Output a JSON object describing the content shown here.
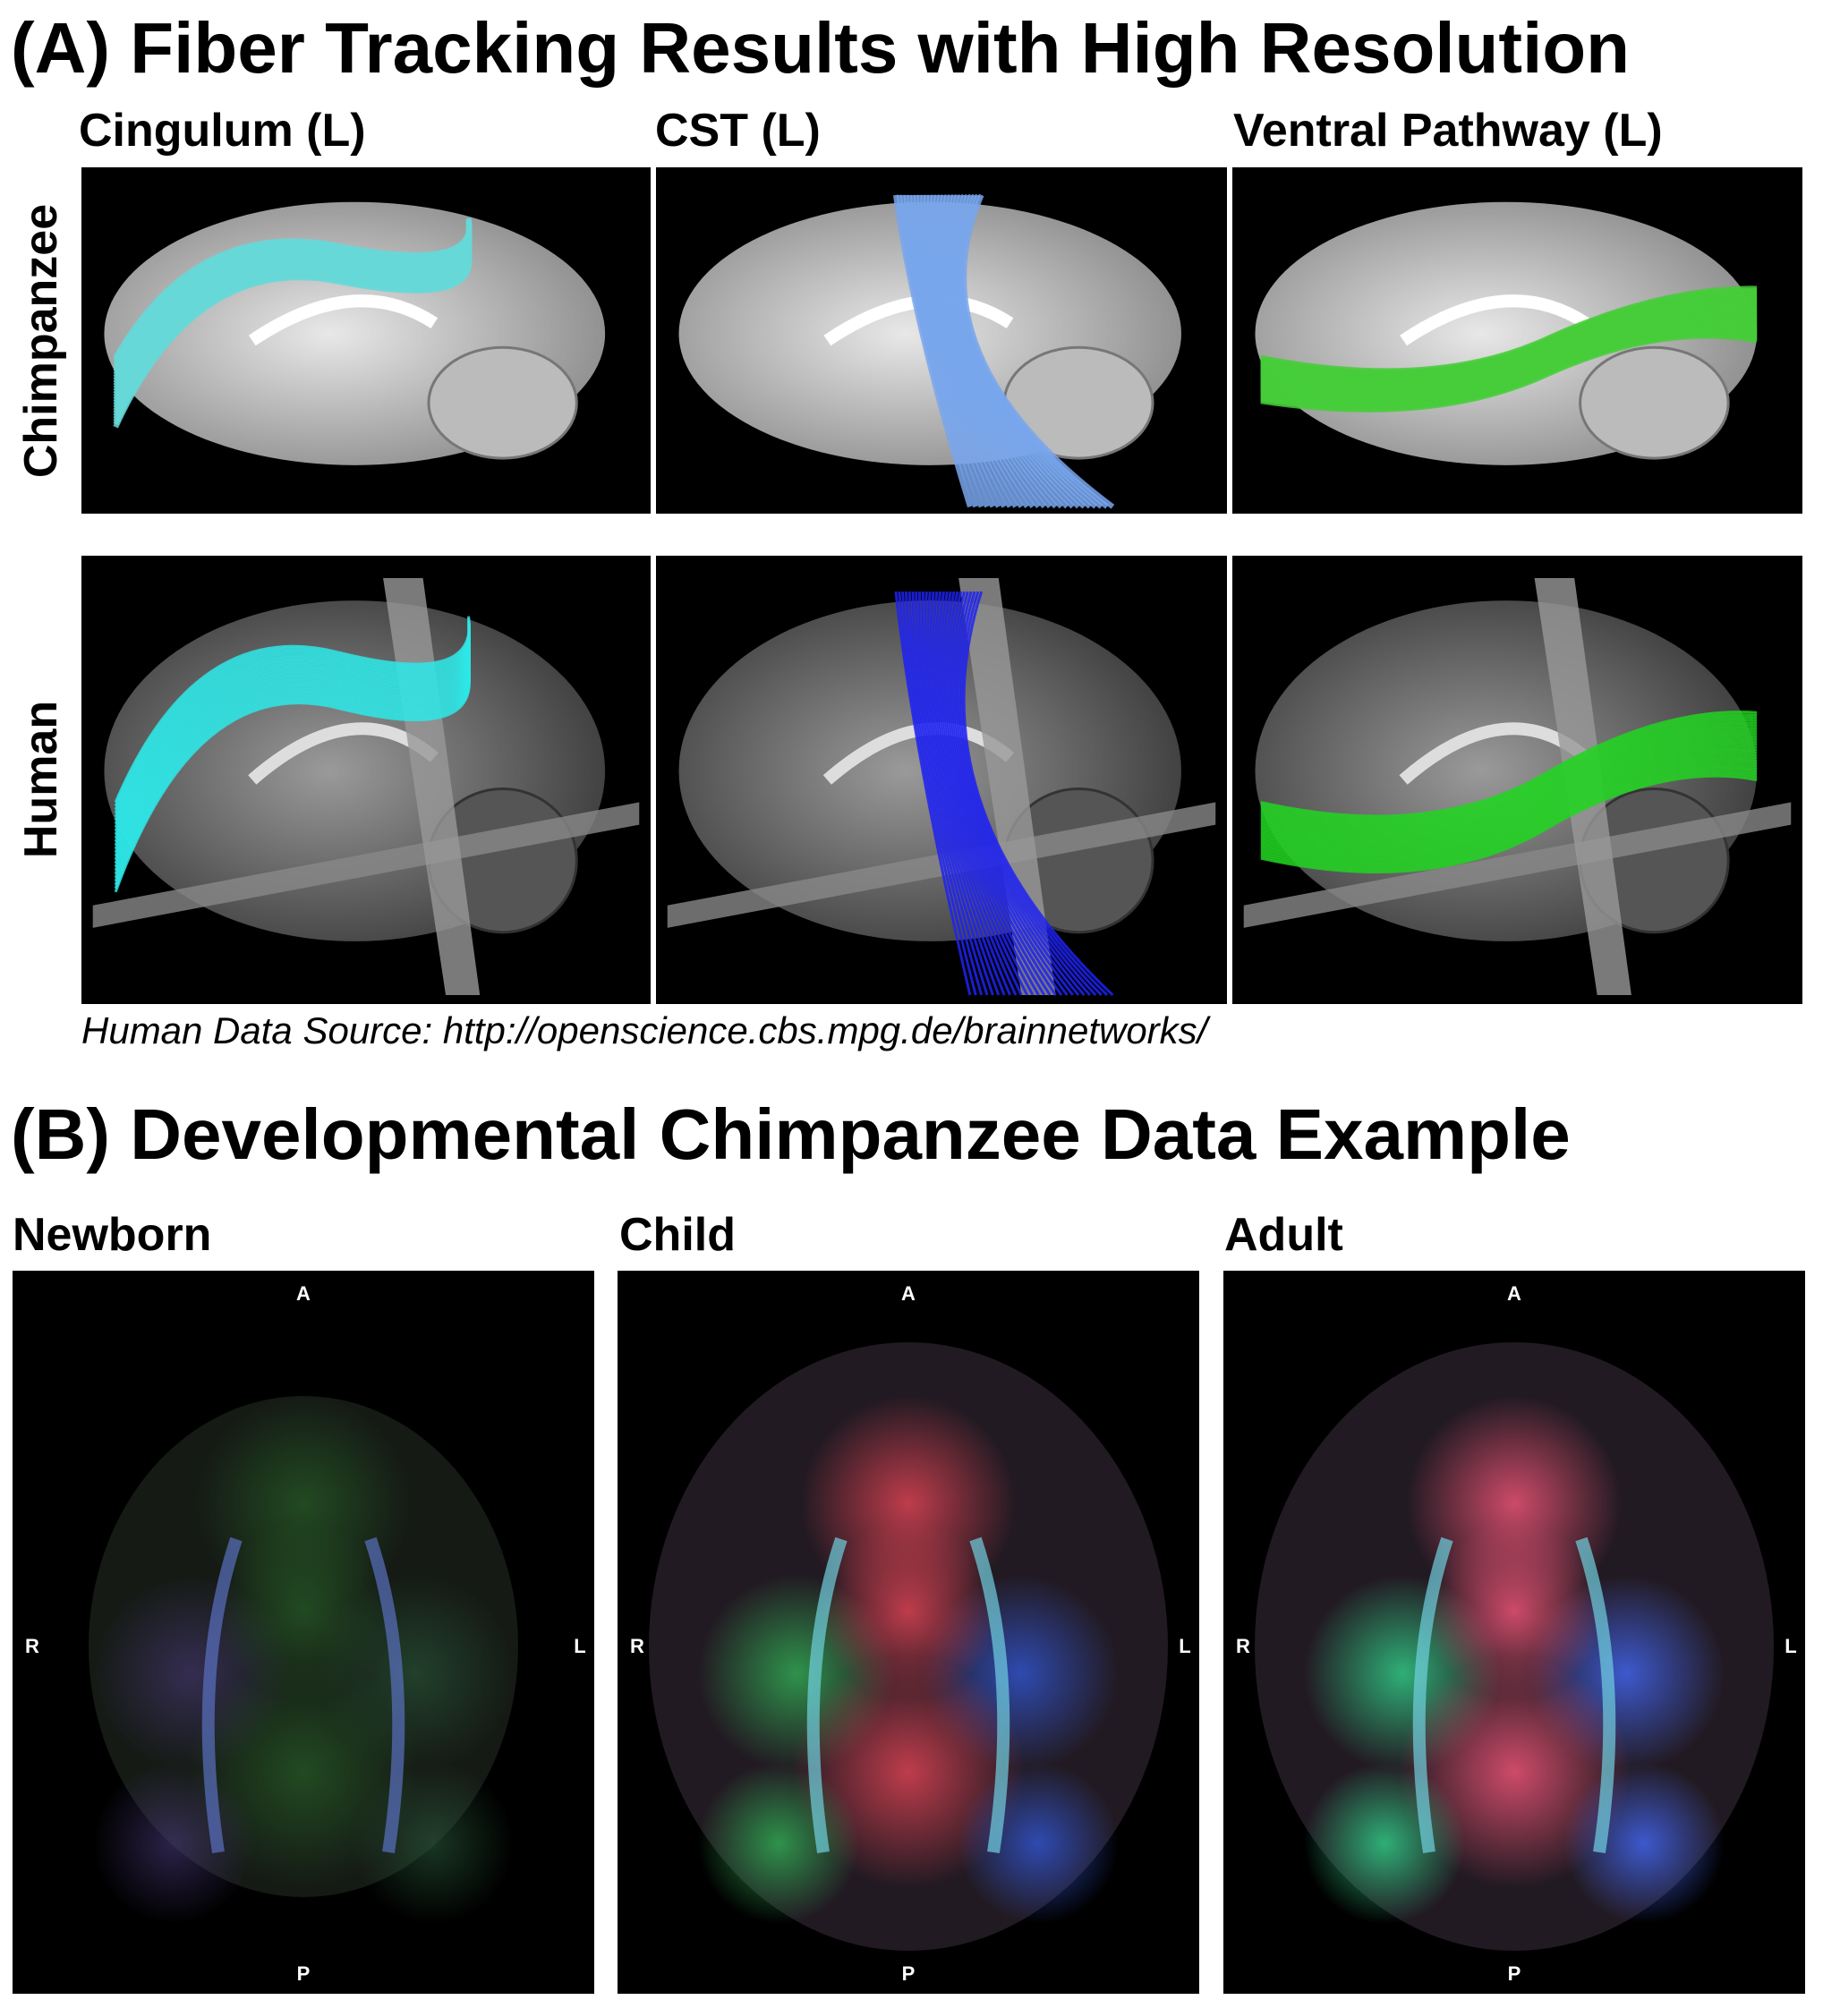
{
  "section_a": {
    "title": "(A) Fiber Tracking Results with High Resolution",
    "columns": [
      "Cingulum (L)",
      "CST (L)",
      "Ventral Pathway (L)"
    ],
    "rows": [
      "Chimpanzee",
      "Human"
    ],
    "source": "Human Data Source: http://openscience.cbs.mpg.de/brainnetworks/"
  },
  "section_b": {
    "title": "(B) Developmental Chimpanzee Data Example",
    "panels": [
      {
        "label": "Newborn",
        "anterior": "A",
        "posterior": "P",
        "right": "R",
        "left": "L"
      },
      {
        "label": "Child",
        "anterior": "A",
        "posterior": "P",
        "right": "R",
        "left": "L"
      },
      {
        "label": "Adult",
        "anterior": "A",
        "posterior": "P",
        "right": "R",
        "left": "L"
      }
    ]
  }
}
